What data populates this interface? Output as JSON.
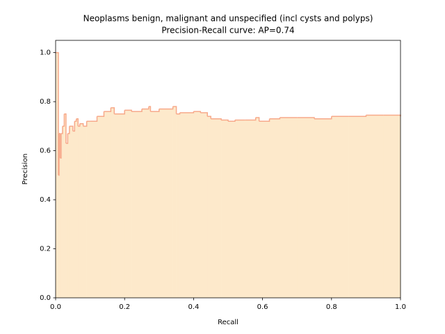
{
  "chart_data": {
    "type": "step-area",
    "title": "Neoplasms benign, malignant and unspecified (incl cysts and polyps)",
    "subtitle": "Precision-Recall curve: AP=0.74",
    "x_label": "Recall",
    "y_label": "Precision",
    "series": [
      {
        "line_color": "#f7a98a",
        "fill_color": "#fde9cb",
        "x": [
          0,
          0.005,
          0.008,
          0.01,
          0.013,
          0.016,
          0.02,
          0.025,
          0.03,
          0.035,
          0.04,
          0.05,
          0.055,
          0.06,
          0.065,
          0.07,
          0.08,
          0.09,
          0.1,
          0.12,
          0.14,
          0.16,
          0.17,
          0.2,
          0.22,
          0.25,
          0.27,
          0.275,
          0.3,
          0.34,
          0.35,
          0.36,
          0.4,
          0.42,
          0.44,
          0.45,
          0.48,
          0.5,
          0.52,
          0.55,
          0.58,
          0.59,
          0.62,
          0.65,
          0.7,
          0.75,
          0.8,
          0.85,
          0.9,
          0.95,
          1.0
        ],
        "values": [
          1.0,
          1.0,
          0.5,
          0.67,
          0.57,
          0.67,
          0.7,
          0.75,
          0.63,
          0.67,
          0.7,
          0.68,
          0.72,
          0.73,
          0.7,
          0.71,
          0.7,
          0.72,
          0.72,
          0.74,
          0.76,
          0.775,
          0.75,
          0.765,
          0.76,
          0.77,
          0.78,
          0.76,
          0.77,
          0.78,
          0.75,
          0.755,
          0.76,
          0.755,
          0.74,
          0.73,
          0.725,
          0.72,
          0.725,
          0.725,
          0.735,
          0.72,
          0.73,
          0.735,
          0.735,
          0.73,
          0.74,
          0.74,
          0.745,
          0.745,
          0.74
        ]
      }
    ],
    "xlim": [
      0,
      1
    ],
    "ylim": [
      0,
      1.05
    ],
    "xticks": [
      {
        "value": 0,
        "label": "0.0"
      },
      0.2,
      0.4,
      0.6,
      0.8,
      {
        "value": 1,
        "label": "1.0"
      }
    ],
    "yticks": [
      {
        "value": 0,
        "label": "0.0"
      },
      0.2,
      0.4,
      0.6,
      0.8,
      {
        "value": 1,
        "label": "1.0"
      }
    ],
    "grid": false
  }
}
